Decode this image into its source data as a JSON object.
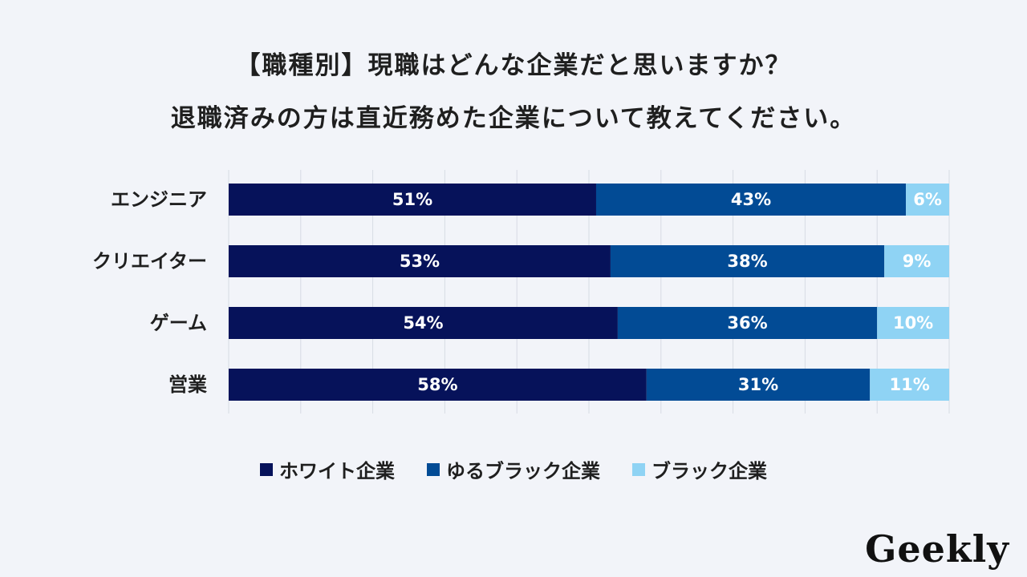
{
  "title_line1": "【職種別】現職はどんな企業だと思いますか？",
  "title_line2": "退職済みの方は直近務めた企業について教えてください。",
  "colors": {
    "white_company": "#06125a",
    "yuru_black": "#024b95",
    "black": "#8fd3f4",
    "grid": "#d7dbe4"
  },
  "chart_data": {
    "type": "bar",
    "orientation": "horizontal",
    "stacked": true,
    "percent": true,
    "categories": [
      "エンジニア",
      "クリエイター",
      "ゲーム",
      "営業"
    ],
    "series": [
      {
        "name": "ホワイト企業",
        "values": [
          51,
          53,
          54,
          58
        ],
        "labels": [
          "51%",
          "53%",
          "54%",
          "58%"
        ]
      },
      {
        "name": "ゆるブラック企業",
        "values": [
          43,
          38,
          36,
          31
        ],
        "labels": [
          "43%",
          "38%",
          "36%",
          "31%"
        ]
      },
      {
        "name": "ブラック企業",
        "values": [
          6,
          9,
          10,
          11
        ],
        "labels": [
          "6%",
          "9%",
          "10%",
          "11%"
        ]
      }
    ],
    "xlim": [
      0,
      100
    ],
    "grid": true,
    "legend_position": "bottom"
  },
  "logo_text": "Geekly"
}
